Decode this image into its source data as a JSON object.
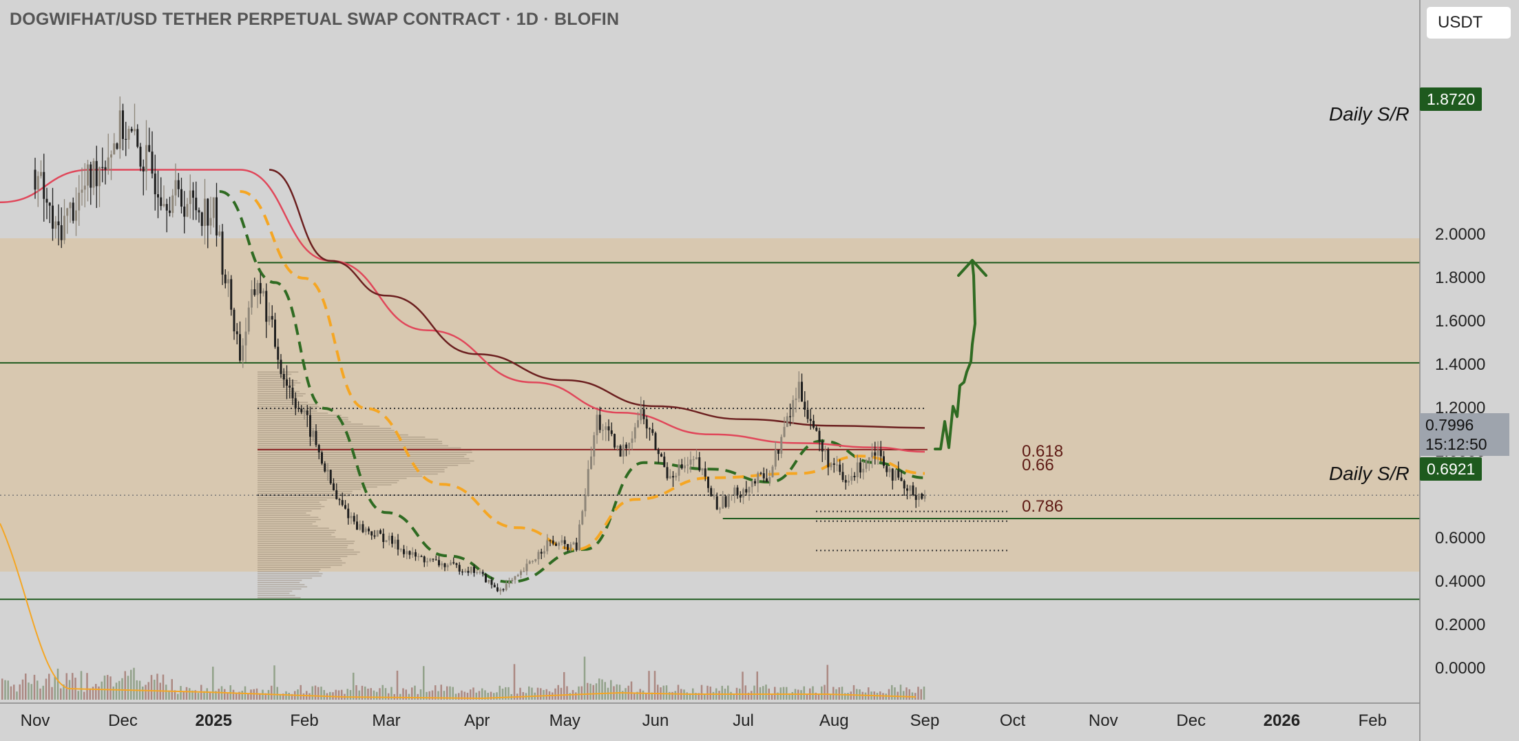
{
  "chart_title": "DOGWIFHAT/USD TETHER PERPETUAL SWAP CONTRACT · 1D · BLOFIN",
  "currency_label": "USDT",
  "price_axis_labels": [
    "2.0000",
    "1.8000",
    "1.6000",
    "1.4000",
    "1.2000",
    "1.0000",
    "0.6000",
    "0.4000",
    "0.2000",
    "0.0000"
  ],
  "time_axis_labels": [
    {
      "text": "Nov",
      "bold": false
    },
    {
      "text": "Dec",
      "bold": false
    },
    {
      "text": "2025",
      "bold": true
    },
    {
      "text": "Feb",
      "bold": false
    },
    {
      "text": "Mar",
      "bold": false
    },
    {
      "text": "Apr",
      "bold": false
    },
    {
      "text": "May",
      "bold": false
    },
    {
      "text": "Jun",
      "bold": false
    },
    {
      "text": "Jul",
      "bold": false
    },
    {
      "text": "Aug",
      "bold": false
    },
    {
      "text": "Sep",
      "bold": false
    },
    {
      "text": "Oct",
      "bold": false
    },
    {
      "text": "Nov",
      "bold": false
    },
    {
      "text": "Dec",
      "bold": false
    },
    {
      "text": "2026",
      "bold": true
    },
    {
      "text": "Feb",
      "bold": false
    }
  ],
  "levels": {
    "daily_sr_upper": {
      "value": "1.8720",
      "label": "Daily S/R"
    },
    "daily_sr_lower": {
      "value": "0.6921",
      "label": "Daily S/R"
    },
    "range_top": 1.41,
    "range_bottom": 0.32,
    "volume_poc": 1.01,
    "value_area_high": 1.2,
    "value_area_low": 0.8
  },
  "current_price": {
    "value": "0.7996",
    "countdown": "15:12:50"
  },
  "fib_levels": [
    {
      "label": "0.618",
      "price": 0.725
    },
    {
      "label": "0.66",
      "price": 0.68
    },
    {
      "label": "0.786",
      "price": 0.545
    }
  ],
  "colors": {
    "background": "#d3d3d3",
    "range_zone": "#d8c8b0",
    "sr_line": "#1e5a1e",
    "ema_fast": "#2f6b22",
    "ema_mid": "#f5a623",
    "ma_red": "#e0475a",
    "ma_dark": "#6b1f1f",
    "candle": "#222222",
    "projection_arrow": "#2f6b22"
  },
  "chart_data": {
    "type": "candlestick",
    "symbol": "DOGWIFHAT/USD",
    "timeframe": "1D",
    "y_axis_unit": "USDT",
    "ylim": [
      -0.1,
      2.3
    ],
    "x_range": [
      "2024-10-20",
      "2026-02-28"
    ],
    "price_path": [
      {
        "date": "2024-11-01",
        "close": 2.3
      },
      {
        "date": "2024-11-08",
        "close": 2.0
      },
      {
        "date": "2024-12-01",
        "close": 2.5
      },
      {
        "date": "2024-12-15",
        "close": 2.2
      },
      {
        "date": "2025-01-01",
        "close": 2.1
      },
      {
        "date": "2025-01-10",
        "close": 1.45
      },
      {
        "date": "2025-01-16",
        "close": 1.8
      },
      {
        "date": "2025-01-25",
        "close": 1.35
      },
      {
        "date": "2025-02-03",
        "close": 1.1
      },
      {
        "date": "2025-02-12",
        "close": 0.78
      },
      {
        "date": "2025-02-20",
        "close": 0.65
      },
      {
        "date": "2025-03-01",
        "close": 0.6
      },
      {
        "date": "2025-03-10",
        "close": 0.52
      },
      {
        "date": "2025-03-20",
        "close": 0.48
      },
      {
        "date": "2025-04-01",
        "close": 0.45
      },
      {
        "date": "2025-04-08",
        "close": 0.36
      },
      {
        "date": "2025-04-15",
        "close": 0.42
      },
      {
        "date": "2025-04-25",
        "close": 0.58
      },
      {
        "date": "2025-05-05",
        "close": 0.56
      },
      {
        "date": "2025-05-12",
        "close": 1.15
      },
      {
        "date": "2025-05-20",
        "close": 0.98
      },
      {
        "date": "2025-05-27",
        "close": 1.18
      },
      {
        "date": "2025-06-05",
        "close": 0.9
      },
      {
        "date": "2025-06-15",
        "close": 0.95
      },
      {
        "date": "2025-06-22",
        "close": 0.75
      },
      {
        "date": "2025-07-01",
        "close": 0.83
      },
      {
        "date": "2025-07-10",
        "close": 0.9
      },
      {
        "date": "2025-07-20",
        "close": 1.3
      },
      {
        "date": "2025-07-28",
        "close": 1.0
      },
      {
        "date": "2025-08-05",
        "close": 0.85
      },
      {
        "date": "2025-08-15",
        "close": 1.02
      },
      {
        "date": "2025-08-25",
        "close": 0.82
      },
      {
        "date": "2025-09-01",
        "close": 0.8
      }
    ],
    "moving_averages": [
      {
        "name": "ema-fast",
        "style": "dashed",
        "color": "#2f6b22",
        "points": [
          {
            "date": "2025-01-03",
            "v": 2.2
          },
          {
            "date": "2025-01-22",
            "v": 1.78
          },
          {
            "date": "2025-02-08",
            "v": 1.2
          },
          {
            "date": "2025-03-01",
            "v": 0.72
          },
          {
            "date": "2025-03-22",
            "v": 0.52
          },
          {
            "date": "2025-04-12",
            "v": 0.4
          },
          {
            "date": "2025-05-08",
            "v": 0.55
          },
          {
            "date": "2025-05-28",
            "v": 0.95
          },
          {
            "date": "2025-06-20",
            "v": 0.92
          },
          {
            "date": "2025-07-10",
            "v": 0.86
          },
          {
            "date": "2025-07-28",
            "v": 1.05
          },
          {
            "date": "2025-08-15",
            "v": 0.95
          },
          {
            "date": "2025-09-01",
            "v": 0.88
          }
        ]
      },
      {
        "name": "ema-mid",
        "style": "dashed",
        "color": "#f5a623",
        "points": [
          {
            "date": "2025-01-10",
            "v": 2.2
          },
          {
            "date": "2025-02-01",
            "v": 1.8
          },
          {
            "date": "2025-02-22",
            "v": 1.2
          },
          {
            "date": "2025-03-20",
            "v": 0.85
          },
          {
            "date": "2025-04-15",
            "v": 0.65
          },
          {
            "date": "2025-05-05",
            "v": 0.55
          },
          {
            "date": "2025-05-25",
            "v": 0.78
          },
          {
            "date": "2025-06-20",
            "v": 0.88
          },
          {
            "date": "2025-07-20",
            "v": 0.9
          },
          {
            "date": "2025-08-10",
            "v": 0.98
          },
          {
            "date": "2025-09-01",
            "v": 0.9
          }
        ]
      },
      {
        "name": "ma-red",
        "style": "solid",
        "color": "#e0475a",
        "points": [
          {
            "date": "2024-10-20",
            "v": 2.15
          },
          {
            "date": "2024-11-20",
            "v": 2.3
          },
          {
            "date": "2025-01-10",
            "v": 2.3
          },
          {
            "date": "2025-02-10",
            "v": 1.88
          },
          {
            "date": "2025-03-15",
            "v": 1.56
          },
          {
            "date": "2025-04-20",
            "v": 1.32
          },
          {
            "date": "2025-05-20",
            "v": 1.18
          },
          {
            "date": "2025-06-20",
            "v": 1.08
          },
          {
            "date": "2025-07-20",
            "v": 1.04
          },
          {
            "date": "2025-08-15",
            "v": 1.02
          },
          {
            "date": "2025-09-01",
            "v": 1.0
          }
        ]
      },
      {
        "name": "ma-dark",
        "style": "solid",
        "color": "#6b1f1f",
        "points": [
          {
            "date": "2025-01-20",
            "v": 2.3
          },
          {
            "date": "2025-02-10",
            "v": 1.88
          },
          {
            "date": "2025-03-01",
            "v": 1.72
          },
          {
            "date": "2025-04-01",
            "v": 1.45
          },
          {
            "date": "2025-05-01",
            "v": 1.33
          },
          {
            "date": "2025-06-01",
            "v": 1.21
          },
          {
            "date": "2025-07-01",
            "v": 1.15
          },
          {
            "date": "2025-08-01",
            "v": 1.12
          },
          {
            "date": "2025-09-01",
            "v": 1.11
          }
        ]
      }
    ]
  }
}
